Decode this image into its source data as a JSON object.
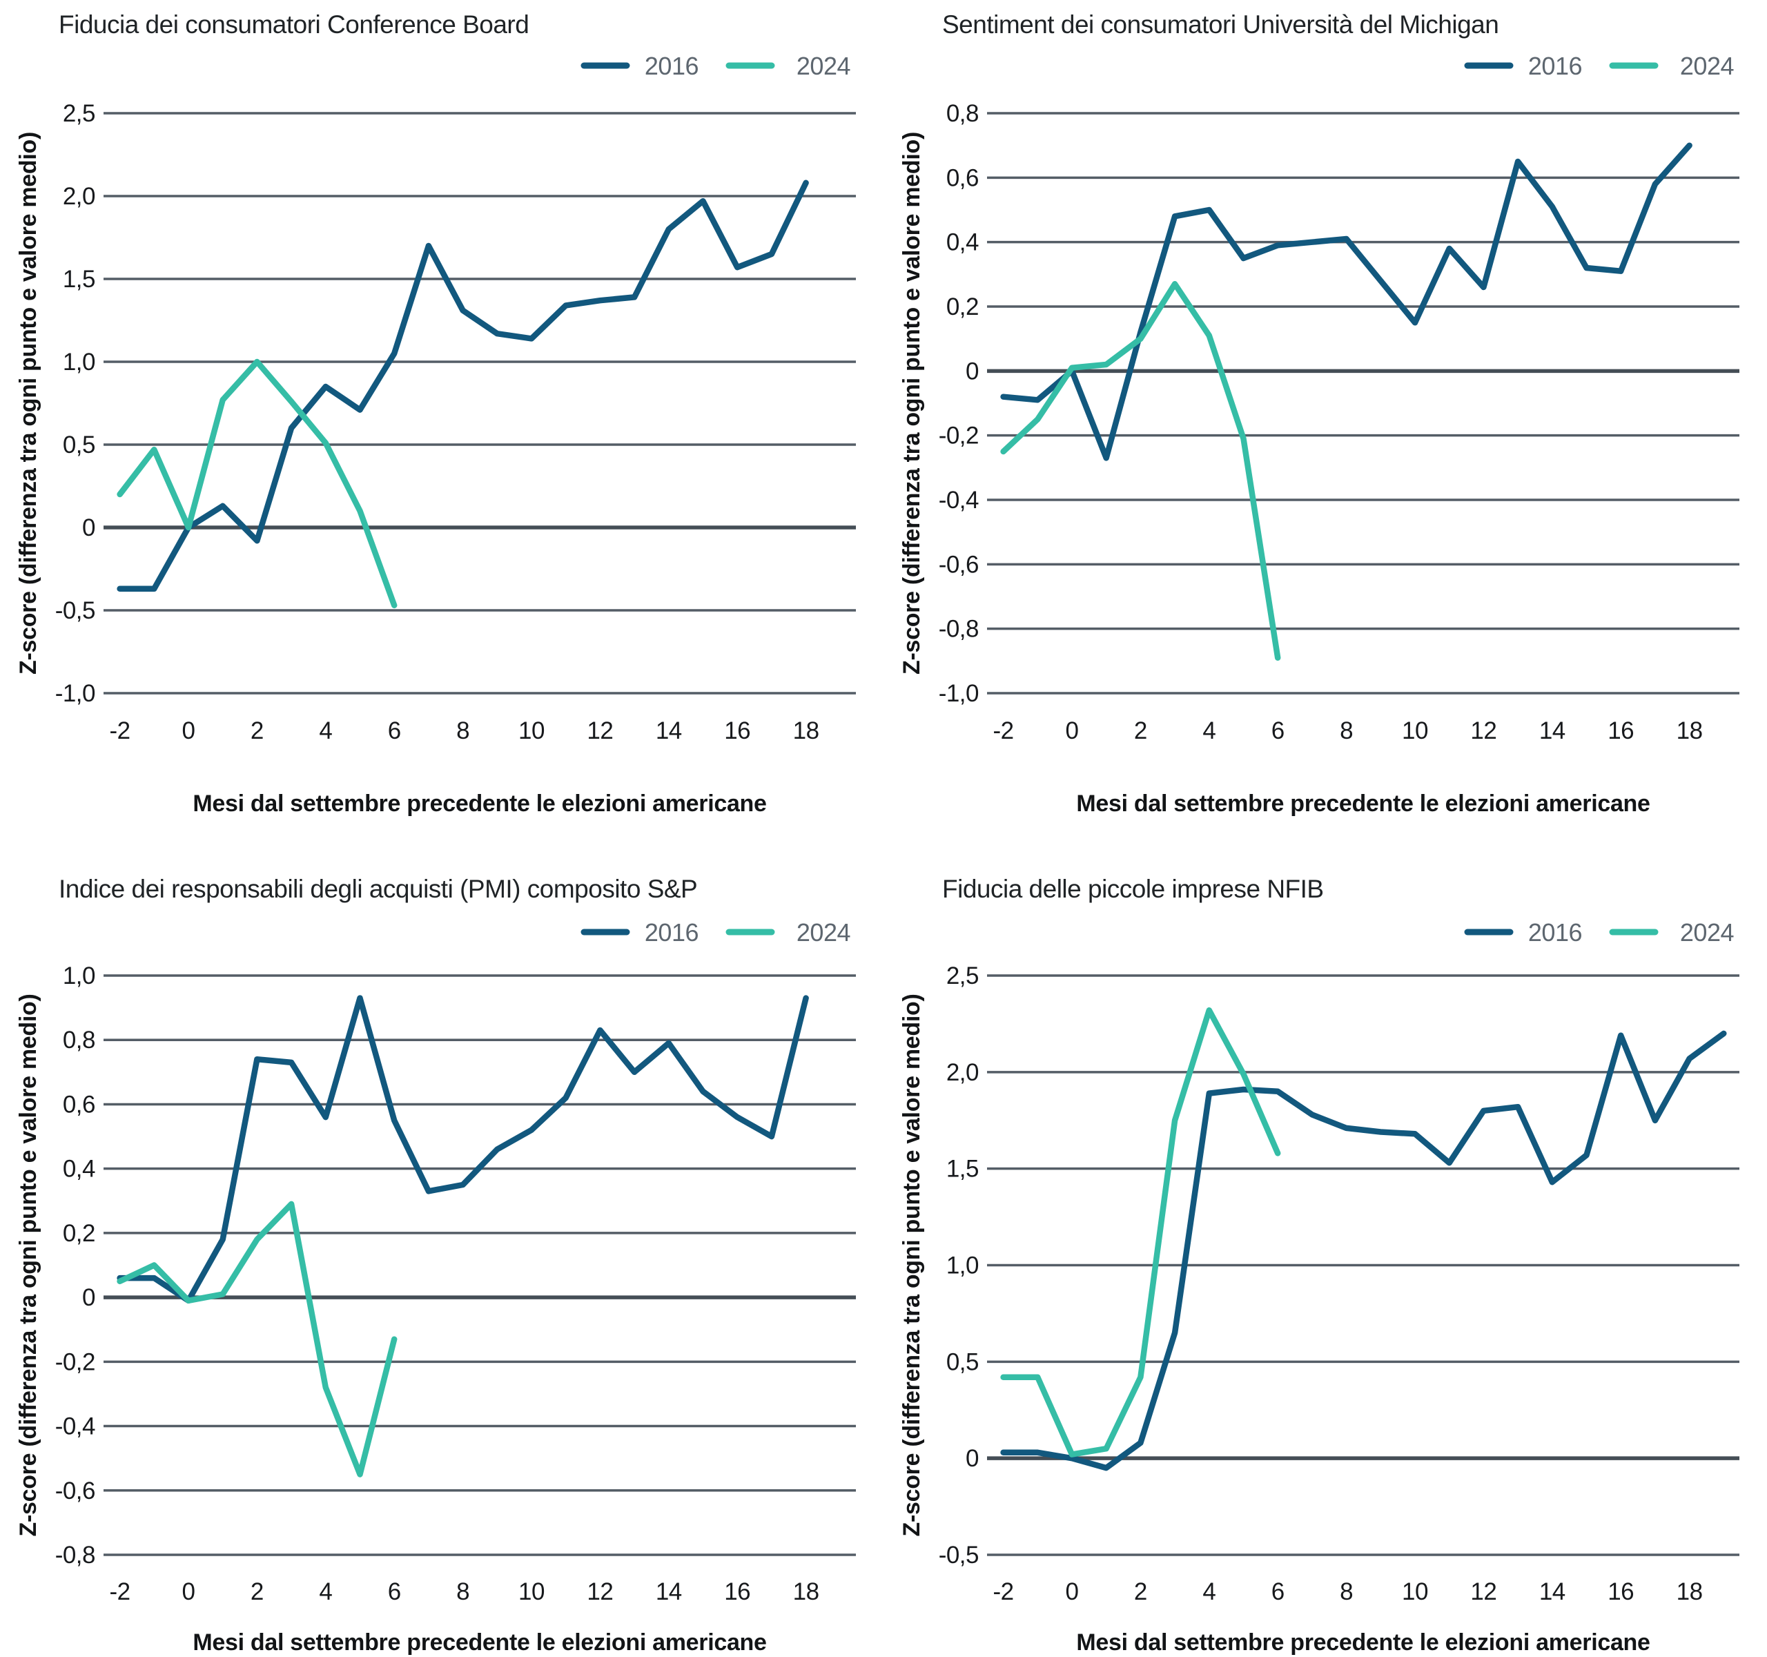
{
  "page": {
    "background": "#ffffff"
  },
  "colors": {
    "series_2016": "#12587e",
    "series_2024": "#35bda6",
    "gridline": "#545d66",
    "zero_line": "#454e56",
    "title_text": "#1f2326",
    "tick_text": "#17191c",
    "axis_title_text": "#121416",
    "legend_text": "#5d666f"
  },
  "legend": {
    "items": [
      {
        "label": "2016"
      },
      {
        "label": "2024"
      }
    ]
  },
  "chart_data": [
    {
      "type": "line",
      "title": "Fiducia dei consumatori Conference Board",
      "xlabel": "Mesi dal settembre precedente le elezioni americane",
      "ylabel": "Z-score (differenza tra ogni punto e valore medio)",
      "row": 0,
      "ylim": [
        -1.0,
        2.5
      ],
      "xlim": [
        -2,
        18
      ],
      "grid": true,
      "legend_position": "top-right",
      "y_ticks": [
        2.5,
        2.0,
        1.5,
        1.0,
        0.5,
        0.0,
        -0.5,
        -1.0
      ],
      "y_tick_labels": [
        "2,5",
        "2,0",
        "1,5",
        "1,0",
        "0,5",
        "0",
        "-0,5",
        "-1,0"
      ],
      "x_ticks": [
        -2,
        0,
        2,
        4,
        6,
        8,
        10,
        12,
        14,
        16,
        18
      ],
      "x_tick_labels": [
        "-2",
        "0",
        "2",
        "4",
        "6",
        "8",
        "10",
        "12",
        "14",
        "16",
        "18"
      ],
      "series": [
        {
          "name": "2016",
          "x": [
            -2,
            -1,
            0,
            1,
            2,
            3,
            4,
            5,
            6,
            7,
            8,
            9,
            10,
            11,
            12,
            13,
            14,
            15,
            16,
            17,
            18
          ],
          "y": [
            -0.37,
            -0.37,
            0.0,
            0.13,
            -0.08,
            0.6,
            0.85,
            0.71,
            1.05,
            1.7,
            1.31,
            1.17,
            1.14,
            1.34,
            1.37,
            1.39,
            1.8,
            1.97,
            1.57,
            1.65,
            2.08
          ]
        },
        {
          "name": "2024",
          "x": [
            -2,
            -1,
            0,
            1,
            2,
            3,
            4,
            5,
            6
          ],
          "y": [
            0.2,
            0.47,
            0.0,
            0.77,
            1.0,
            0.76,
            0.51,
            0.1,
            -0.47
          ]
        }
      ]
    },
    {
      "type": "line",
      "title": "Sentiment dei consumatori Università del Michigan",
      "xlabel": "Mesi dal settembre precedente le elezioni americane",
      "ylabel": "Z-score (differenza tra ogni punto e valore medio)",
      "row": 0,
      "ylim": [
        -1.0,
        0.8
      ],
      "xlim": [
        -2,
        18
      ],
      "grid": true,
      "legend_position": "top-right",
      "y_ticks": [
        0.8,
        0.6,
        0.4,
        0.2,
        0.0,
        -0.2,
        -0.4,
        -0.6,
        -0.8,
        -1.0
      ],
      "y_tick_labels": [
        "0,8",
        "0,6",
        "0,4",
        "0,2",
        "0",
        "-0,2",
        "-0,4",
        "-0,6",
        "-0,8",
        "-1,0"
      ],
      "x_ticks": [
        -2,
        0,
        2,
        4,
        6,
        8,
        10,
        12,
        14,
        16,
        18
      ],
      "x_tick_labels": [
        "-2",
        "0",
        "2",
        "4",
        "6",
        "8",
        "10",
        "12",
        "14",
        "16",
        "18"
      ],
      "series": [
        {
          "name": "2016",
          "x": [
            -2,
            -1,
            0,
            1,
            2,
            3,
            4,
            5,
            6,
            7,
            8,
            9,
            10,
            11,
            12,
            13,
            14,
            15,
            16,
            17,
            18
          ],
          "y": [
            -0.08,
            -0.09,
            0.0,
            -0.27,
            0.12,
            0.48,
            0.5,
            0.35,
            0.39,
            0.4,
            0.41,
            0.28,
            0.15,
            0.38,
            0.26,
            0.65,
            0.51,
            0.32,
            0.31,
            0.58,
            0.7
          ]
        },
        {
          "name": "2024",
          "x": [
            -2,
            -1,
            0,
            1,
            2,
            3,
            4,
            5,
            6
          ],
          "y": [
            -0.25,
            -0.15,
            0.01,
            0.02,
            0.1,
            0.27,
            0.11,
            -0.21,
            -0.89
          ]
        }
      ]
    },
    {
      "type": "line",
      "title": "Indice dei responsabili degli acquisti (PMI) composito S&P",
      "xlabel": "Mesi dal settembre precedente le elezioni americane",
      "ylabel": "Z-score (differenza tra ogni punto e valore medio)",
      "row": 1,
      "ylim": [
        -0.8,
        1.0
      ],
      "xlim": [
        -2,
        18
      ],
      "grid": true,
      "legend_position": "top-right",
      "y_ticks": [
        1.0,
        0.8,
        0.6,
        0.4,
        0.2,
        0.0,
        -0.2,
        -0.4,
        -0.6,
        -0.8
      ],
      "y_tick_labels": [
        "1,0",
        "0,8",
        "0,6",
        "0,4",
        "0,2",
        "0",
        "-0,2",
        "-0,4",
        "-0,6",
        "-0,8"
      ],
      "x_ticks": [
        -2,
        0,
        2,
        4,
        6,
        8,
        10,
        12,
        14,
        16,
        18
      ],
      "x_tick_labels": [
        "-2",
        "0",
        "2",
        "4",
        "6",
        "8",
        "10",
        "12",
        "14",
        "16",
        "18"
      ],
      "series": [
        {
          "name": "2016",
          "x": [
            -2,
            -1,
            0,
            1,
            2,
            3,
            4,
            5,
            6,
            7,
            8,
            9,
            10,
            11,
            12,
            13,
            14,
            15,
            16,
            17,
            18
          ],
          "y": [
            0.06,
            0.06,
            -0.01,
            0.18,
            0.74,
            0.73,
            0.56,
            0.93,
            0.55,
            0.33,
            0.35,
            0.46,
            0.52,
            0.62,
            0.83,
            0.7,
            0.79,
            0.64,
            0.56,
            0.5,
            0.93
          ]
        },
        {
          "name": "2024",
          "x": [
            -2,
            -1,
            0,
            1,
            2,
            3,
            4,
            5,
            6
          ],
          "y": [
            0.05,
            0.1,
            -0.01,
            0.01,
            0.18,
            0.29,
            -0.28,
            -0.55,
            -0.13
          ]
        }
      ]
    },
    {
      "type": "line",
      "title": "Fiducia delle piccole imprese NFIB",
      "xlabel": "Mesi dal settembre precedente le elezioni americane",
      "ylabel": "Z-score (differenza tra ogni punto e valore medio)",
      "row": 1,
      "ylim": [
        -0.5,
        2.5
      ],
      "xlim": [
        -2,
        19
      ],
      "grid": true,
      "legend_position": "top-right",
      "y_ticks": [
        2.5,
        2.0,
        1.5,
        1.0,
        0.5,
        0.0,
        -0.5
      ],
      "y_tick_labels": [
        "2,5",
        "2,0",
        "1,5",
        "1,0",
        "0,5",
        "0",
        "-0,5"
      ],
      "x_ticks": [
        -2,
        0,
        2,
        4,
        6,
        8,
        10,
        12,
        14,
        16,
        18
      ],
      "x_tick_labels": [
        "-2",
        "0",
        "2",
        "4",
        "6",
        "8",
        "10",
        "12",
        "14",
        "16",
        "18"
      ],
      "series": [
        {
          "name": "2016",
          "x": [
            -2,
            -1,
            0,
            1,
            2,
            3,
            4,
            5,
            6,
            7,
            8,
            9,
            10,
            11,
            12,
            13,
            14,
            15,
            16,
            17,
            18,
            19
          ],
          "y": [
            0.03,
            0.03,
            0.0,
            -0.05,
            0.08,
            0.65,
            1.89,
            1.91,
            1.9,
            1.78,
            1.71,
            1.69,
            1.68,
            1.53,
            1.8,
            1.82,
            1.43,
            1.57,
            2.19,
            1.75,
            2.07,
            2.2
          ]
        },
        {
          "name": "2024",
          "x": [
            -2,
            -1,
            0,
            1,
            2,
            3,
            4,
            5,
            6
          ],
          "y": [
            0.42,
            0.42,
            0.02,
            0.05,
            0.42,
            1.75,
            2.32,
            1.99,
            1.58
          ]
        }
      ]
    }
  ]
}
